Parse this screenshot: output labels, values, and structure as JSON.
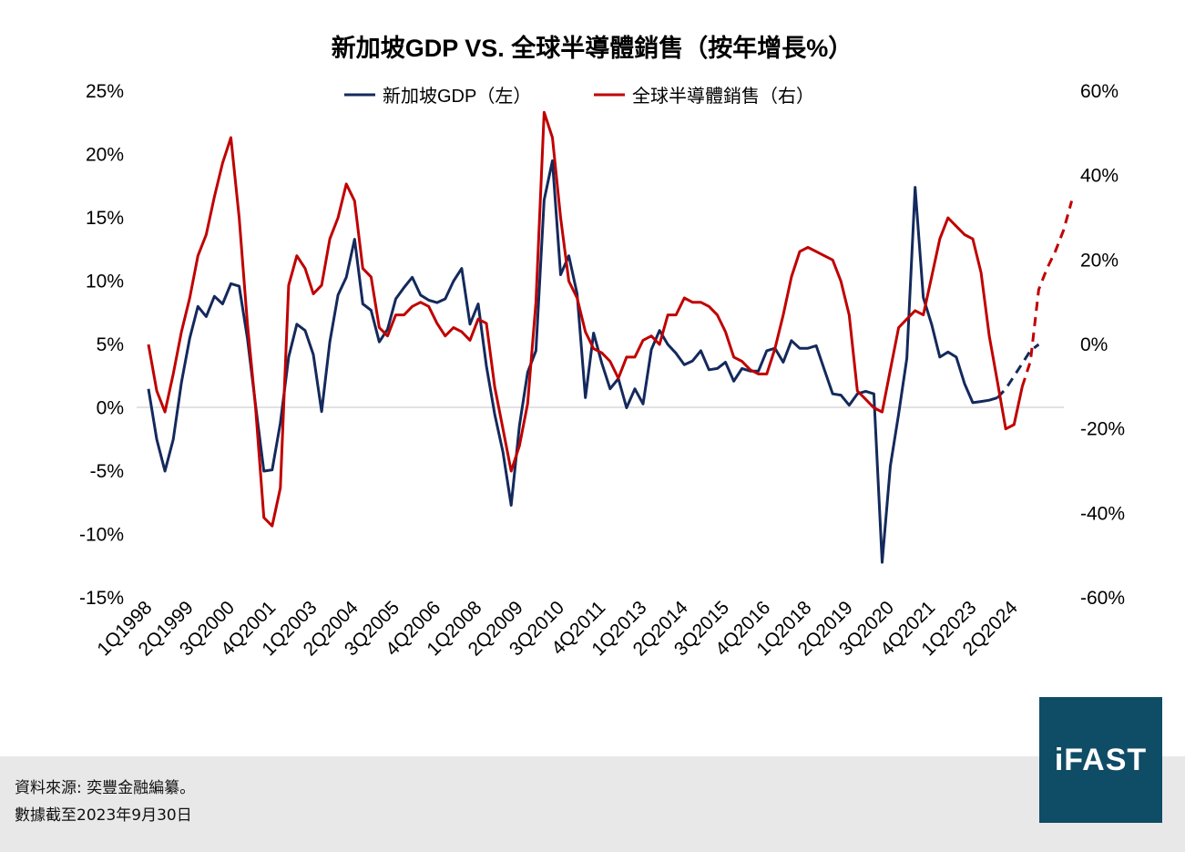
{
  "chart_data": {
    "type": "line",
    "title": "新加坡GDP VS. 全球半導體銷售（按年增長%）",
    "series": [
      {
        "name": "新加坡GDP（左）",
        "axis": "left",
        "color": "#14295c",
        "values": [
          1.5,
          -2.5,
          -5.0,
          -2.5,
          2.0,
          5.5,
          8.0,
          7.2,
          8.8,
          8.2,
          9.8,
          9.6,
          5.5,
          0.2,
          -5.0,
          -4.9,
          -1.2,
          4.0,
          6.6,
          6.1,
          4.2,
          -0.3,
          5.2,
          8.9,
          10.3,
          13.3,
          8.2,
          7.7,
          5.2,
          6.2,
          8.6,
          9.5,
          10.3,
          8.9,
          8.5,
          8.3,
          8.6,
          10.0,
          11.0,
          6.6,
          8.2,
          3.3,
          -0.5,
          -3.5,
          -7.7,
          -1.4,
          2.8,
          4.5,
          16.4,
          19.5,
          10.5,
          12.0,
          9.0,
          0.8,
          5.9,
          3.5,
          1.5,
          2.3,
          0.0,
          1.5,
          0.3,
          4.6,
          6.1,
          5.0,
          4.3,
          3.4,
          3.7,
          4.5,
          3.0,
          3.1,
          3.6,
          2.1,
          3.1,
          2.9,
          2.9,
          4.5,
          4.7,
          3.6,
          5.3,
          4.7,
          4.7,
          4.9,
          3.0,
          1.1,
          1.0,
          0.2,
          1.1,
          1.3,
          1.1,
          -12.2,
          -4.6,
          -0.5,
          3.9,
          17.4,
          8.7,
          6.6,
          4.0,
          4.4,
          4.0,
          1.9,
          0.4,
          0.5,
          0.6,
          0.8,
          1.5,
          2.5,
          3.5,
          4.5,
          5.0
        ],
        "dashed_from_index": 103
      },
      {
        "name": "全球半導體銷售（右）",
        "axis": "right",
        "color": "#c00000",
        "values": [
          0,
          -11,
          -16,
          -7,
          3,
          11,
          21,
          26,
          35,
          43,
          49,
          30,
          5,
          -15,
          -41,
          -43,
          -34,
          14,
          21,
          18,
          12,
          14,
          25,
          30,
          38,
          34,
          18,
          16,
          4,
          2,
          7,
          7,
          9,
          10,
          9,
          5,
          2,
          4,
          3,
          1,
          6,
          5,
          -10,
          -20,
          -30,
          -24,
          -14,
          10,
          55,
          49,
          30,
          15,
          11,
          3,
          -1,
          -2,
          -4,
          -8,
          -3,
          -3,
          1,
          2,
          0,
          7,
          7,
          11,
          10,
          10,
          9,
          7,
          3,
          -3,
          -4,
          -6,
          -7,
          -7,
          -1,
          7,
          16,
          22,
          23,
          22,
          21,
          20,
          15,
          7,
          -11,
          -13,
          -15,
          -16,
          -6,
          4,
          6,
          8,
          7,
          16,
          25,
          30,
          28,
          26,
          25,
          17,
          2,
          -9,
          -20,
          -19,
          -10,
          -4,
          13,
          18,
          22,
          27,
          34
        ],
        "dashed_from_index": 106
      }
    ],
    "x_tick_labels": [
      "1Q1998",
      "2Q1999",
      "3Q2000",
      "4Q2001",
      "1Q2003",
      "2Q2004",
      "3Q2005",
      "4Q2006",
      "1Q2008",
      "2Q2009",
      "3Q2010",
      "4Q2011",
      "1Q2013",
      "2Q2014",
      "3Q2015",
      "4Q2016",
      "1Q2018",
      "2Q2019",
      "3Q2020",
      "4Q2021",
      "1Q2023",
      "2Q2024"
    ],
    "y_left": {
      "ylim": [
        -15,
        25
      ],
      "ticks": [
        "-15%",
        "-10%",
        "-5%",
        "0%",
        "5%",
        "10%",
        "15%",
        "20%",
        "25%"
      ],
      "tick_values": [
        -15,
        -10,
        -5,
        0,
        5,
        10,
        15,
        20,
        25
      ]
    },
    "y_right": {
      "ylim": [
        -60,
        60
      ],
      "ticks": [
        "-60%",
        "-40%",
        "-20%",
        "0%",
        "20%",
        "40%",
        "60%"
      ],
      "tick_values": [
        -60,
        -40,
        -20,
        0,
        20,
        40,
        60
      ]
    },
    "grid": false,
    "legend_position": "top-center"
  },
  "footer": {
    "source": "資料來源: 奕豐金融編纂。",
    "date_note": "數據截至2023年9月30日"
  },
  "logo": {
    "text": "iFAST",
    "bg_color": "#0f4c66"
  }
}
